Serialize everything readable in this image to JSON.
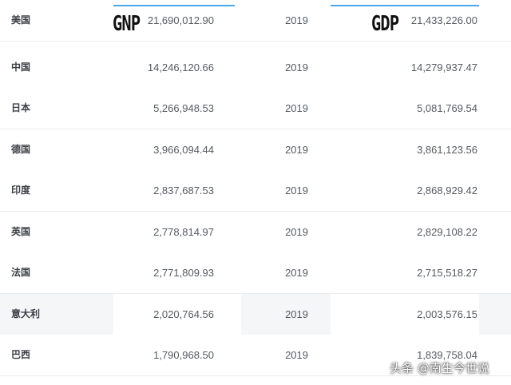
{
  "headers": {
    "gnp_label": "GNP",
    "gdp_label": "GDP"
  },
  "accent_color": "#4aa8e8",
  "rows": [
    {
      "country": "美国",
      "gnp": "21,690,012.90",
      "year": "2019",
      "gdp": "21,433,226.00"
    },
    {
      "country": "中国",
      "gnp": "14,246,120.66",
      "year": "2019",
      "gdp": "14,279,937.47"
    },
    {
      "country": "日本",
      "gnp": "5,266,948.53",
      "year": "2019",
      "gdp": "5,081,769.54"
    },
    {
      "country": "德国",
      "gnp": "3,966,094.44",
      "year": "2019",
      "gdp": "3,861,123.56"
    },
    {
      "country": "印度",
      "gnp": "2,837,687.53",
      "year": "2019",
      "gdp": "2,868,929.42"
    },
    {
      "country": "英国",
      "gnp": "2,778,814.97",
      "year": "2019",
      "gdp": "2,829,108.22"
    },
    {
      "country": "法国",
      "gnp": "2,771,809.93",
      "year": "2019",
      "gdp": "2,715,518.27"
    },
    {
      "country": "意大利",
      "gnp": "2,020,764.56",
      "year": "2019",
      "gdp": "2,003,576.15"
    },
    {
      "country": "巴西",
      "gnp": "1,790,968.50",
      "year": "2019",
      "gdp": "1,839,758.04"
    }
  ],
  "watermark": "头条 @南生今世说"
}
